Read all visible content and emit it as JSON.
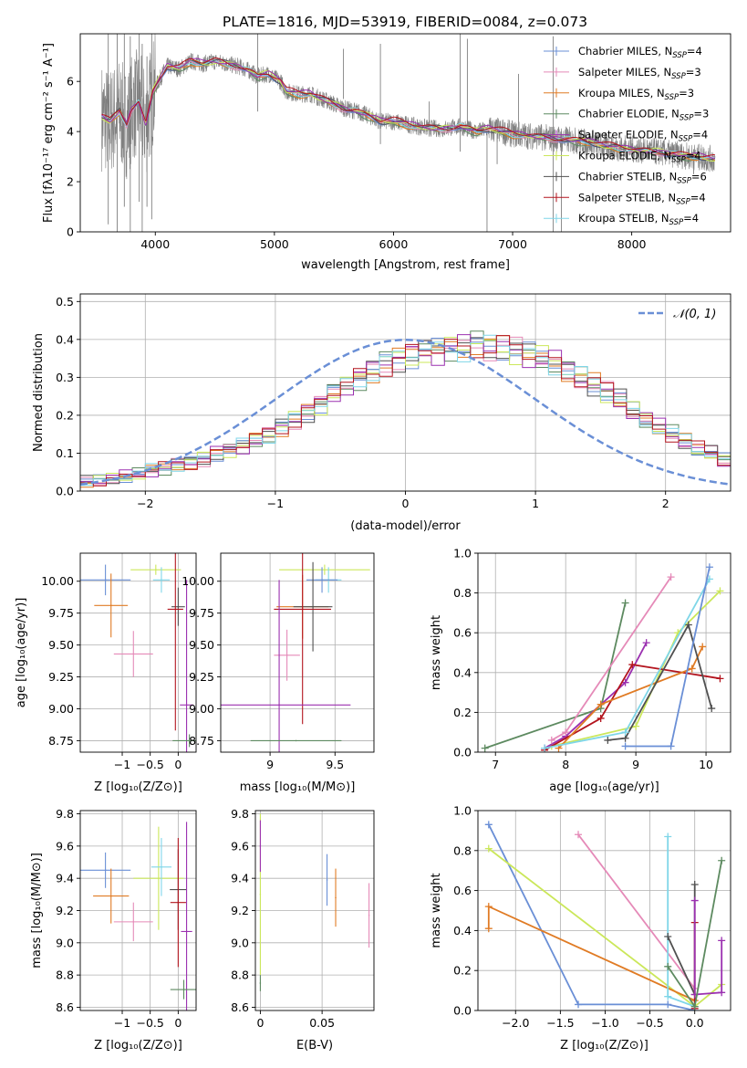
{
  "figure": {
    "title": "PLATE=1816, MJD=53919, FIBERID=0084, z=0.073"
  },
  "colors": {
    "grid": "#b0b0b0",
    "observed": "#808080",
    "normal": "#6a8fd6"
  },
  "legend_series": [
    {
      "name": "Chabrier MILES, N",
      "sub": "SSP",
      "suffix": "=4",
      "color": "#6a8fd6"
    },
    {
      "name": "Salpeter MILES, N",
      "sub": "SSP",
      "suffix": "=3",
      "color": "#e58ab8"
    },
    {
      "name": "Kroupa MILES, N",
      "sub": "SSP",
      "suffix": "=3",
      "color": "#e07b24"
    },
    {
      "name": "Chabrier ELODIE, N",
      "sub": "SSP",
      "suffix": "=3",
      "color": "#5d8a60"
    },
    {
      "name": "Salpeter ELODIE, N",
      "sub": "SSP",
      "suffix": "=4",
      "color": "#9b30b0"
    },
    {
      "name": "Kroupa ELODIE, N",
      "sub": "SSP",
      "suffix": "=4",
      "color": "#cbe75a"
    },
    {
      "name": "Chabrier STELIB, N",
      "sub": "SSP",
      "suffix": "=6",
      "color": "#505050"
    },
    {
      "name": "Salpeter STELIB, N",
      "sub": "SSP",
      "suffix": "=4",
      "color": "#b3141e"
    },
    {
      "name": "Kroupa STELIB, N",
      "sub": "SSP",
      "suffix": "=4",
      "color": "#7fd6e8"
    }
  ],
  "chart_data": [
    {
      "id": "spectrum",
      "type": "line",
      "xlabel": "wavelength [Angstrom, rest frame]",
      "ylabel": "Flux [fλ10⁻¹⁷ erg cm⁻² s⁻¹ A⁻¹]",
      "xlim": [
        3370,
        8830
      ],
      "ylim": [
        0,
        7.9
      ],
      "xticks": [
        4000,
        5000,
        6000,
        7000,
        8000
      ],
      "yticks": [
        0,
        2,
        4,
        6
      ],
      "grid": false,
      "legend": "upper-right",
      "model_knots": {
        "x": [
          3550,
          3620,
          3700,
          3760,
          3800,
          3860,
          3920,
          3980,
          4050,
          4100,
          4200,
          4300,
          4400,
          4500,
          4600,
          4700,
          4800,
          4860,
          4950,
          5050,
          5100,
          5200,
          5300,
          5400,
          5500,
          5600,
          5700,
          5800,
          5890,
          6000,
          6200,
          6400,
          6560,
          6700,
          6800,
          7000,
          7200,
          7400,
          7600,
          7800,
          8000,
          8200,
          8500,
          8700
        ],
        "y": [
          4.6,
          4.4,
          4.8,
          4.3,
          4.9,
          5.2,
          4.3,
          5.6,
          6.2,
          6.6,
          6.5,
          6.8,
          6.7,
          6.8,
          6.7,
          6.6,
          6.4,
          6.2,
          6.3,
          6.0,
          5.6,
          5.5,
          5.5,
          5.3,
          5.1,
          4.9,
          4.8,
          4.6,
          4.4,
          4.4,
          4.2,
          4.1,
          4.2,
          4.0,
          4.1,
          3.9,
          3.8,
          3.7,
          3.6,
          3.4,
          3.3,
          3.2,
          3.0,
          2.9
        ]
      },
      "observed_spikes": [
        {
          "x": 3605,
          "y0": 0.3,
          "y1": 7.9
        },
        {
          "x": 3680,
          "y0": 0.0,
          "y1": 7.9
        },
        {
          "x": 3740,
          "y0": 1.0,
          "y1": 7.9
        },
        {
          "x": 3790,
          "y0": 0.0,
          "y1": 7.8
        },
        {
          "x": 3865,
          "y0": 1.2,
          "y1": 7.9
        },
        {
          "x": 3890,
          "y0": 0.0,
          "y1": 7.5
        },
        {
          "x": 3930,
          "y0": 1.0,
          "y1": 7.0
        },
        {
          "x": 3970,
          "y0": 0.5,
          "y1": 7.9
        },
        {
          "x": 4860,
          "y0": 4.8,
          "y1": 7.9
        },
        {
          "x": 5580,
          "y0": 5.3,
          "y1": 7.3
        },
        {
          "x": 5890,
          "y0": 3.5,
          "y1": 7.5
        },
        {
          "x": 6300,
          "y0": 3.8,
          "y1": 5.2
        },
        {
          "x": 6560,
          "y0": 3.2,
          "y1": 7.9
        },
        {
          "x": 6620,
          "y0": 3.8,
          "y1": 7.7
        },
        {
          "x": 6785,
          "y0": 0.0,
          "y1": 4.2
        },
        {
          "x": 6870,
          "y0": 2.7,
          "y1": 4.3
        },
        {
          "x": 7050,
          "y0": 3.5,
          "y1": 6.3
        },
        {
          "x": 7340,
          "y0": 0.0,
          "y1": 7.8
        },
        {
          "x": 7410,
          "y0": 0.0,
          "y1": 4.0
        },
        {
          "x": 8520,
          "y0": 2.3,
          "y1": 3.3
        }
      ]
    },
    {
      "id": "residuals",
      "type": "step",
      "xlabel": "(data-model)/error",
      "ylabel": "Normed distribution",
      "xlim": [
        -2.5,
        2.5
      ],
      "ylim": [
        0,
        0.52
      ],
      "xticks": [
        -2,
        -1,
        0,
        1,
        2
      ],
      "yticks": [
        0.0,
        0.1,
        0.2,
        0.3,
        0.4,
        0.5
      ],
      "grid": true,
      "legend": "upper-right",
      "normal_label": "𝒩(0, 1)",
      "bins": {
        "start": -2.5,
        "width": 0.1,
        "count": 50
      },
      "hist_envelope": [
        0.025,
        0.028,
        0.035,
        0.04,
        0.045,
        0.055,
        0.06,
        0.07,
        0.075,
        0.085,
        0.1,
        0.11,
        0.12,
        0.135,
        0.15,
        0.17,
        0.19,
        0.21,
        0.23,
        0.26,
        0.28,
        0.3,
        0.32,
        0.34,
        0.35,
        0.36,
        0.37,
        0.37,
        0.38,
        0.38,
        0.39,
        0.38,
        0.38,
        0.37,
        0.36,
        0.35,
        0.34,
        0.32,
        0.3,
        0.28,
        0.26,
        0.24,
        0.21,
        0.19,
        0.17,
        0.15,
        0.13,
        0.11,
        0.1,
        0.08
      ]
    },
    {
      "id": "age-vs-Z",
      "type": "errorbar",
      "xlabel": "Z [log₁₀(Z/Z⊙)]",
      "ylabel": "age  [log₁₀(age/yr)]",
      "xlim": [
        -1.75,
        0.32
      ],
      "ylim": [
        8.66,
        10.22
      ],
      "xticks": [
        -1,
        -0.5,
        0
      ],
      "xticklabels": [
        "−1",
        "−0.5",
        "0"
      ],
      "yticks": [
        8.75,
        9.0,
        9.25,
        9.5,
        9.75,
        10.0
      ],
      "grid": true,
      "points": [
        {
          "series": 0,
          "x": -1.3,
          "xerr": 0.45,
          "y": 10.01,
          "yerr": 0.12
        },
        {
          "series": 2,
          "x": -1.2,
          "xerr": 0.3,
          "y": 9.81,
          "yerr": 0.25
        },
        {
          "series": 1,
          "x": -0.8,
          "xerr": 0.35,
          "y": 9.43,
          "yerr": 0.18
        },
        {
          "series": 5,
          "x": -0.4,
          "xerr": 0.45,
          "y": 10.09,
          "yerr": 0.04
        },
        {
          "series": 8,
          "x": -0.3,
          "xerr": 0.15,
          "y": 10.01,
          "yerr": 0.1
        },
        {
          "series": 6,
          "x": 0.0,
          "xerr": 0.12,
          "y": 9.8,
          "yerr": 0.15
        },
        {
          "series": 7,
          "x": -0.05,
          "xerr": 0.14,
          "y": 9.78,
          "yerr": 0.95
        },
        {
          "series": 4,
          "x": 0.15,
          "xerr": 0.12,
          "y": 9.03,
          "yerr": 0.98
        },
        {
          "series": 3,
          "x": 0.2,
          "xerr": 0.3,
          "y": 8.75,
          "yerr": 0.05
        }
      ]
    },
    {
      "id": "age-vs-mass",
      "type": "errorbar",
      "xlabel": "mass [log₁₀(M/M⊙)]",
      "ylabel": "",
      "xlim": [
        8.62,
        9.8
      ],
      "ylim": [
        8.66,
        10.22
      ],
      "xticks": [
        9.0,
        9.5
      ],
      "yticks": [
        8.75,
        9.0,
        9.25,
        9.5,
        9.75,
        10.0
      ],
      "grid": true,
      "points": [
        {
          "series": 5,
          "x": 9.42,
          "xerr": 0.35,
          "y": 10.09,
          "yerr": 0.04
        },
        {
          "series": 8,
          "x": 9.45,
          "xerr": 0.1,
          "y": 10.01,
          "yerr": 0.1
        },
        {
          "series": 0,
          "x": 9.4,
          "xerr": 0.12,
          "y": 10.01,
          "yerr": 0.1
        },
        {
          "series": 2,
          "x": 9.25,
          "xerr": 0.2,
          "y": 9.8,
          "yerr": 0.25
        },
        {
          "series": 6,
          "x": 9.33,
          "xerr": 0.15,
          "y": 9.8,
          "yerr": 0.35
        },
        {
          "series": 7,
          "x": 9.25,
          "xerr": 0.22,
          "y": 9.78,
          "yerr": 0.9
        },
        {
          "series": 1,
          "x": 9.13,
          "xerr": 0.1,
          "y": 9.42,
          "yerr": 0.2
        },
        {
          "series": 4,
          "x": 9.07,
          "xerr": 0.55,
          "y": 9.03,
          "yerr": 0.98
        },
        {
          "series": 3,
          "x": 9.2,
          "xerr": 0.35,
          "y": 8.75,
          "yerr": 0.0
        }
      ]
    },
    {
      "id": "massweight-vs-age",
      "type": "line",
      "xlabel": "age  [log₁₀(age/yr)]",
      "ylabel": "mass weight",
      "xlim": [
        6.75,
        10.35
      ],
      "ylim": [
        0,
        1
      ],
      "xticks": [
        7,
        8,
        9,
        10
      ],
      "yticks": [
        0.0,
        0.2,
        0.4,
        0.6,
        0.8,
        1.0
      ],
      "grid": true,
      "series": [
        {
          "series": 3,
          "x": [
            6.85,
            8.5,
            8.85
          ],
          "y": [
            0.02,
            0.22,
            0.75
          ]
        },
        {
          "series": 5,
          "x": [
            7.8,
            9.0,
            9.6,
            10.2
          ],
          "y": [
            0.03,
            0.13,
            0.6,
            0.81
          ]
        },
        {
          "series": 4,
          "x": [
            7.7,
            8.0,
            8.85,
            9.15
          ],
          "y": [
            0.02,
            0.08,
            0.35,
            0.55
          ]
        },
        {
          "series": 7,
          "x": [
            7.7,
            8.5,
            8.95,
            10.2
          ],
          "y": [
            0.01,
            0.17,
            0.44,
            0.37
          ]
        },
        {
          "series": 2,
          "x": [
            7.9,
            8.5,
            9.8,
            9.95
          ],
          "y": [
            0.02,
            0.24,
            0.42,
            0.53
          ]
        },
        {
          "series": 1,
          "x": [
            7.8,
            8.0,
            9.5
          ],
          "y": [
            0.06,
            0.1,
            0.88
          ]
        },
        {
          "series": 6,
          "x": [
            8.6,
            8.85,
            9.75,
            10.08
          ],
          "y": [
            0.06,
            0.07,
            0.64,
            0.22
          ]
        },
        {
          "series": 8,
          "x": [
            7.7,
            8.85,
            10.05
          ],
          "y": [
            0.02,
            0.1,
            0.87
          ]
        },
        {
          "series": 0,
          "x": [
            8.85,
            9.5,
            10.05
          ],
          "y": [
            0.03,
            0.03,
            0.93
          ]
        }
      ]
    },
    {
      "id": "mass-vs-Z",
      "type": "errorbar",
      "xlabel": "Z [log₁₀(Z/Z⊙)]",
      "ylabel": "mass [log₁₀(M/M⊙)]",
      "xlim": [
        -1.75,
        0.32
      ],
      "ylim": [
        8.58,
        9.82
      ],
      "xticks": [
        -1,
        -0.5,
        0
      ],
      "xticklabels": [
        "−1",
        "−0.5",
        "0"
      ],
      "yticks": [
        8.6,
        8.8,
        9.0,
        9.2,
        9.4,
        9.6,
        9.8
      ],
      "grid": true,
      "points": [
        {
          "series": 0,
          "x": -1.3,
          "xerr": 0.45,
          "y": 9.45,
          "yerr": 0.11
        },
        {
          "series": 2,
          "x": -1.2,
          "xerr": 0.32,
          "y": 9.29,
          "yerr": 0.17
        },
        {
          "series": 1,
          "x": -0.8,
          "xerr": 0.35,
          "y": 9.13,
          "yerr": 0.12
        },
        {
          "series": 5,
          "x": -0.35,
          "xerr": 0.45,
          "y": 9.4,
          "yerr": 0.32
        },
        {
          "series": 8,
          "x": -0.3,
          "xerr": 0.18,
          "y": 9.47,
          "yerr": 0.18
        },
        {
          "series": 6,
          "x": 0.0,
          "xerr": 0.15,
          "y": 9.33,
          "yerr": 0.25
        },
        {
          "series": 7,
          "x": 0.0,
          "xerr": 0.14,
          "y": 9.25,
          "yerr": 0.4
        },
        {
          "series": 4,
          "x": 0.15,
          "xerr": 0.1,
          "y": 9.07,
          "yerr": 0.68
        },
        {
          "series": 3,
          "x": 0.1,
          "xerr": 0.24,
          "y": 8.71,
          "yerr": 0.06
        }
      ]
    },
    {
      "id": "ebv",
      "type": "errorbar",
      "xlabel": "E(B-V)",
      "ylabel": "",
      "xlim": [
        -0.004,
        0.092
      ],
      "ylim": [
        8.58,
        9.82
      ],
      "xticks": [
        0.0,
        0.05
      ],
      "yticks": [
        8.6,
        8.8,
        9.0,
        9.2,
        9.4,
        9.6,
        9.8
      ],
      "grid": true,
      "points": [
        {
          "series": 0,
          "x": 0.054,
          "y": 9.39,
          "yerr": 0.16
        },
        {
          "series": 2,
          "x": 0.061,
          "y": 9.28,
          "yerr": 0.18
        },
        {
          "series": 1,
          "x": 0.088,
          "y": 9.17,
          "yerr": 0.2
        },
        {
          "series": 5,
          "x": 0.0,
          "y": 9.3,
          "yerr": 0.5
        },
        {
          "series": 4,
          "x": 0.0,
          "y": 9.6,
          "yerr": 0.16
        },
        {
          "series": 3,
          "x": 0.0,
          "y": 8.75,
          "yerr": 0.05
        }
      ]
    },
    {
      "id": "massweight-vs-Z",
      "type": "line",
      "xlabel": "Z [log₁₀(Z/Z⊙)]",
      "ylabel": "mass weight",
      "xlim": [
        -2.42,
        0.4
      ],
      "ylim": [
        0,
        1
      ],
      "xticks": [
        -2.0,
        -1.5,
        -1.0,
        -0.5,
        0.0
      ],
      "xticklabels": [
        "−2.0",
        "−1.5",
        "−1.0",
        "−0.5",
        "0.0"
      ],
      "yticks": [
        0.0,
        0.2,
        0.4,
        0.6,
        0.8,
        1.0
      ],
      "grid": true,
      "series": [
        {
          "series": 0,
          "x": [
            -2.3,
            -1.3,
            -0.3,
            0.0
          ],
          "y": [
            0.93,
            0.03,
            0.03,
            0.0
          ]
        },
        {
          "series": 5,
          "x": [
            -2.3,
            0.0,
            0.3
          ],
          "y": [
            0.81,
            0.02,
            0.13
          ]
        },
        {
          "series": 2,
          "x": [
            -2.3,
            -2.3,
            0.0
          ],
          "y": [
            0.41,
            0.52,
            0.05
          ]
        },
        {
          "series": 1,
          "x": [
            -1.3,
            0.0
          ],
          "y": [
            0.88,
            0.11
          ]
        },
        {
          "series": 8,
          "x": [
            -0.3,
            -0.3,
            0.0
          ],
          "y": [
            0.87,
            0.07,
            0.02
          ]
        },
        {
          "series": 6,
          "x": [
            -0.3,
            0.0,
            0.0
          ],
          "y": [
            0.37,
            0.08,
            0.63
          ]
        },
        {
          "series": 7,
          "x": [
            0.0,
            0.0
          ],
          "y": [
            0.01,
            0.44
          ]
        },
        {
          "series": 4,
          "x": [
            0.0,
            0.0,
            0.3,
            0.3
          ],
          "y": [
            0.55,
            0.08,
            0.09,
            0.35
          ]
        },
        {
          "series": 3,
          "x": [
            -0.3,
            0.0,
            0.3
          ],
          "y": [
            0.22,
            0.02,
            0.75
          ]
        }
      ]
    }
  ]
}
